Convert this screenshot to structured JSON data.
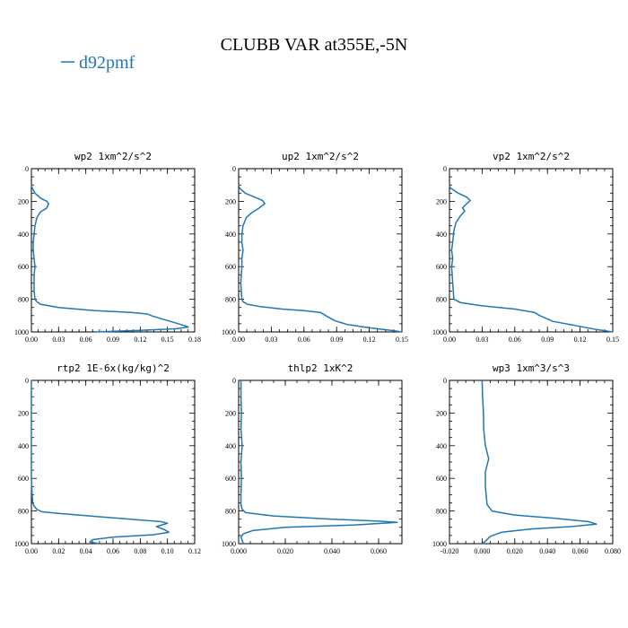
{
  "figure": {
    "title": "CLUBB VAR at355E,-5N",
    "legend": [
      {
        "label": "d92pmf",
        "color": "#1f77b4"
      }
    ]
  },
  "chart_data": [
    {
      "type": "line",
      "title": "wp2   1xm^2/s^2",
      "xlim": [
        0,
        0.18
      ],
      "xticks": [
        "0.00",
        "0.03",
        "0.06",
        "0.09",
        "0.12",
        "0.15",
        "0.18"
      ],
      "ylim": [
        1000,
        0
      ],
      "yticks": [
        "0",
        "200",
        "400",
        "600",
        "800",
        "1000"
      ],
      "series": [
        {
          "name": "d92pmf",
          "color": "#1f77b4",
          "x": [
            0.0,
            0.001,
            0.004,
            0.01,
            0.017,
            0.019,
            0.017,
            0.01,
            0.006,
            0.004,
            0.003,
            0.002,
            0.002,
            0.003,
            0.004,
            0.003,
            0.003,
            0.003,
            0.004,
            0.006,
            0.01,
            0.03,
            0.07,
            0.11,
            0.128,
            0.132,
            0.15,
            0.168,
            0.173,
            0.16,
            0.12,
            0.07
          ],
          "y": [
            100,
            120,
            150,
            180,
            200,
            215,
            240,
            265,
            300,
            350,
            400,
            450,
            500,
            550,
            600,
            650,
            700,
            750,
            800,
            815,
            830,
            850,
            870,
            880,
            890,
            900,
            930,
            960,
            970,
            980,
            990,
            1000
          ]
        }
      ]
    },
    {
      "type": "line",
      "title": "up2   1xm^2/s^2",
      "xlim": [
        0,
        0.15
      ],
      "xticks": [
        "0.00",
        "0.03",
        "0.06",
        "0.09",
        "0.12",
        "0.15"
      ],
      "ylim": [
        1000,
        0
      ],
      "yticks": [
        "0",
        "200",
        "400",
        "600",
        "800",
        "1000"
      ],
      "series": [
        {
          "name": "d92pmf",
          "color": "#1f77b4",
          "x": [
            0.0,
            0.001,
            0.006,
            0.015,
            0.022,
            0.024,
            0.019,
            0.012,
            0.007,
            0.004,
            0.003,
            0.003,
            0.004,
            0.003,
            0.003,
            0.002,
            0.003,
            0.004,
            0.008,
            0.02,
            0.04,
            0.06,
            0.075,
            0.08,
            0.088,
            0.1,
            0.12,
            0.14,
            0.15
          ],
          "y": [
            100,
            120,
            150,
            175,
            195,
            215,
            240,
            270,
            300,
            350,
            400,
            450,
            500,
            550,
            600,
            700,
            800,
            815,
            830,
            845,
            860,
            870,
            880,
            900,
            930,
            955,
            975,
            990,
            1000
          ]
        }
      ]
    },
    {
      "type": "line",
      "title": "vp2   1xm^2/s^2",
      "xlim": [
        0,
        0.15
      ],
      "xticks": [
        "0.00",
        "0.03",
        "0.06",
        "0.09",
        "0.12",
        "0.15"
      ],
      "ylim": [
        1000,
        0
      ],
      "yticks": [
        "0",
        "200",
        "400",
        "600",
        "800",
        "1000"
      ],
      "series": [
        {
          "name": "d92pmf",
          "color": "#1f77b4",
          "x": [
            0.0,
            0.001,
            0.008,
            0.016,
            0.019,
            0.015,
            0.012,
            0.014,
            0.01,
            0.006,
            0.004,
            0.003,
            0.002,
            0.003,
            0.002,
            0.003,
            0.004,
            0.01,
            0.03,
            0.06,
            0.078,
            0.083,
            0.095,
            0.115,
            0.135,
            0.15
          ],
          "y": [
            100,
            120,
            150,
            175,
            195,
            220,
            240,
            260,
            290,
            330,
            380,
            450,
            500,
            550,
            600,
            700,
            800,
            820,
            840,
            860,
            880,
            900,
            935,
            960,
            985,
            1000
          ]
        }
      ]
    },
    {
      "type": "line",
      "title": "rtp2   1E-6x(kg/kg)^2",
      "xlim": [
        0,
        0.12
      ],
      "xticks": [
        "0.00",
        "0.02",
        "0.04",
        "0.06",
        "0.08",
        "0.10",
        "0.12"
      ],
      "ylim": [
        1000,
        0
      ],
      "yticks": [
        "0",
        "200",
        "400",
        "600",
        "800",
        "1000"
      ],
      "series": [
        {
          "name": "d92pmf",
          "color": "#1f77b4",
          "x": [
            0.0,
            0.0,
            0.0,
            0.0,
            0.0005,
            0.001,
            0.002,
            0.004,
            0.008,
            0.02,
            0.05,
            0.08,
            0.095,
            0.1,
            0.092,
            0.098,
            0.101,
            0.09,
            0.06,
            0.045,
            0.043,
            0.05
          ],
          "y": [
            0,
            200,
            400,
            600,
            700,
            750,
            770,
            790,
            805,
            815,
            835,
            855,
            865,
            875,
            895,
            915,
            930,
            945,
            960,
            975,
            990,
            1000
          ]
        }
      ]
    },
    {
      "type": "line",
      "title": "thlp2   1xK^2",
      "xlim": [
        0,
        0.07
      ],
      "xticks": [
        "0.000",
        "0.020",
        "0.040",
        "0.060"
      ],
      "ylim": [
        1000,
        0
      ],
      "yticks": [
        "0",
        "200",
        "400",
        "600",
        "800",
        "1000"
      ],
      "series": [
        {
          "name": "d92pmf",
          "color": "#1f77b4",
          "x": [
            0.001,
            0.001,
            0.0012,
            0.001,
            0.0015,
            0.001,
            0.0012,
            0.001,
            0.001,
            0.0015,
            0.003,
            0.015,
            0.04,
            0.06,
            0.068,
            0.05,
            0.02,
            0.006,
            0.002,
            0.001,
            0.0015,
            0.002
          ],
          "y": [
            0,
            100,
            200,
            300,
            400,
            500,
            600,
            700,
            760,
            790,
            810,
            830,
            850,
            862,
            870,
            885,
            900,
            920,
            940,
            960,
            980,
            1000
          ]
        }
      ]
    },
    {
      "type": "line",
      "title": "wp3   1xm^3/s^3",
      "xlim": [
        -0.02,
        0.08
      ],
      "xticks": [
        "-0.020",
        "0.000",
        "0.020",
        "0.040",
        "0.060",
        "0.080"
      ],
      "ylim": [
        1000,
        0
      ],
      "yticks": [
        "0",
        "200",
        "400",
        "600",
        "800",
        "1000"
      ],
      "series": [
        {
          "name": "d92pmf",
          "color": "#1f77b4",
          "x": [
            0.0,
            0.0003,
            0.0008,
            0.001,
            0.002,
            0.004,
            0.003,
            0.002,
            0.002,
            0.003,
            0.006,
            0.02,
            0.045,
            0.065,
            0.07,
            0.055,
            0.03,
            0.012,
            0.005,
            0.002,
            0.0
          ],
          "y": [
            0,
            100,
            200,
            300,
            400,
            480,
            520,
            560,
            650,
            760,
            800,
            825,
            845,
            865,
            880,
            895,
            910,
            930,
            955,
            985,
            1000
          ]
        }
      ]
    }
  ]
}
